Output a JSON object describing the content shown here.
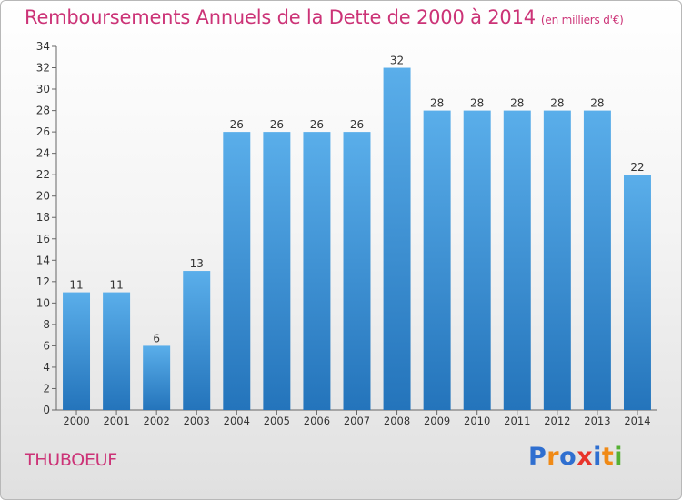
{
  "chart_data": {
    "type": "bar",
    "title": "Remboursements Annuels de la Dette de 2000 à 2014",
    "unit_note": "(en milliers d'€)",
    "categories": [
      "2000",
      "2001",
      "2002",
      "2003",
      "2004",
      "2005",
      "2006",
      "2007",
      "2008",
      "2009",
      "2010",
      "2011",
      "2012",
      "2013",
      "2014"
    ],
    "values": [
      11,
      11,
      6,
      13,
      26,
      26,
      26,
      26,
      32,
      28,
      28,
      28,
      28,
      28,
      22
    ],
    "ylim": [
      0,
      34
    ],
    "yticks": [
      0,
      2,
      4,
      6,
      8,
      10,
      12,
      14,
      16,
      18,
      20,
      22,
      24,
      26,
      28,
      30,
      32,
      34
    ],
    "xlabel": "",
    "ylabel": "",
    "grid": false,
    "bar_color": "#3a8fd6"
  },
  "commune": "THUBOEUF",
  "brand": {
    "name": "Proxiti",
    "letters": [
      "P",
      "r",
      "o",
      "x",
      "i",
      "t",
      "i"
    ],
    "letter_colors": [
      "#2f6fd0",
      "#f08a16",
      "#2f6fd0",
      "#e8342b",
      "#2f6fd0",
      "#f08a16",
      "#55b033"
    ]
  }
}
